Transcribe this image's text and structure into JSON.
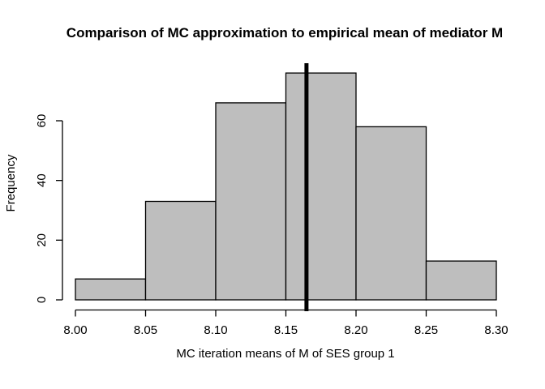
{
  "chart_data": {
    "type": "histogram",
    "title": "Comparison of MC approximation to empirical mean of mediator M",
    "xlabel": "MC iteration means of M of SES group 1",
    "ylabel": "Frequency",
    "bins": {
      "breaks": [
        8.0,
        8.05,
        8.1,
        8.15,
        8.2,
        8.25,
        8.3
      ],
      "counts": [
        7,
        33,
        66,
        76,
        58,
        13
      ]
    },
    "x_ticks": [
      {
        "value": 8.0,
        "label": "8.00"
      },
      {
        "value": 8.05,
        "label": "8.05"
      },
      {
        "value": 8.1,
        "label": "8.10"
      },
      {
        "value": 8.15,
        "label": "8.15"
      },
      {
        "value": 8.2,
        "label": "8.20"
      },
      {
        "value": 8.25,
        "label": "8.25"
      },
      {
        "value": 8.3,
        "label": "8.30"
      }
    ],
    "y_ticks": [
      {
        "value": 0,
        "label": "0"
      },
      {
        "value": 20,
        "label": "20"
      },
      {
        "value": 40,
        "label": "40"
      },
      {
        "value": 60,
        "label": "60"
      }
    ],
    "xlim": [
      8.0,
      8.3
    ],
    "ylim": [
      0,
      76
    ],
    "vline": {
      "x": 8.1647,
      "lwd": 5,
      "color": "#000000"
    },
    "style": {
      "bar_fill": "#bebebe",
      "bar_border": "#000000",
      "axis_color": "#000000",
      "text_color": "#000000",
      "background": "#ffffff"
    },
    "grid": false,
    "legend": null
  }
}
